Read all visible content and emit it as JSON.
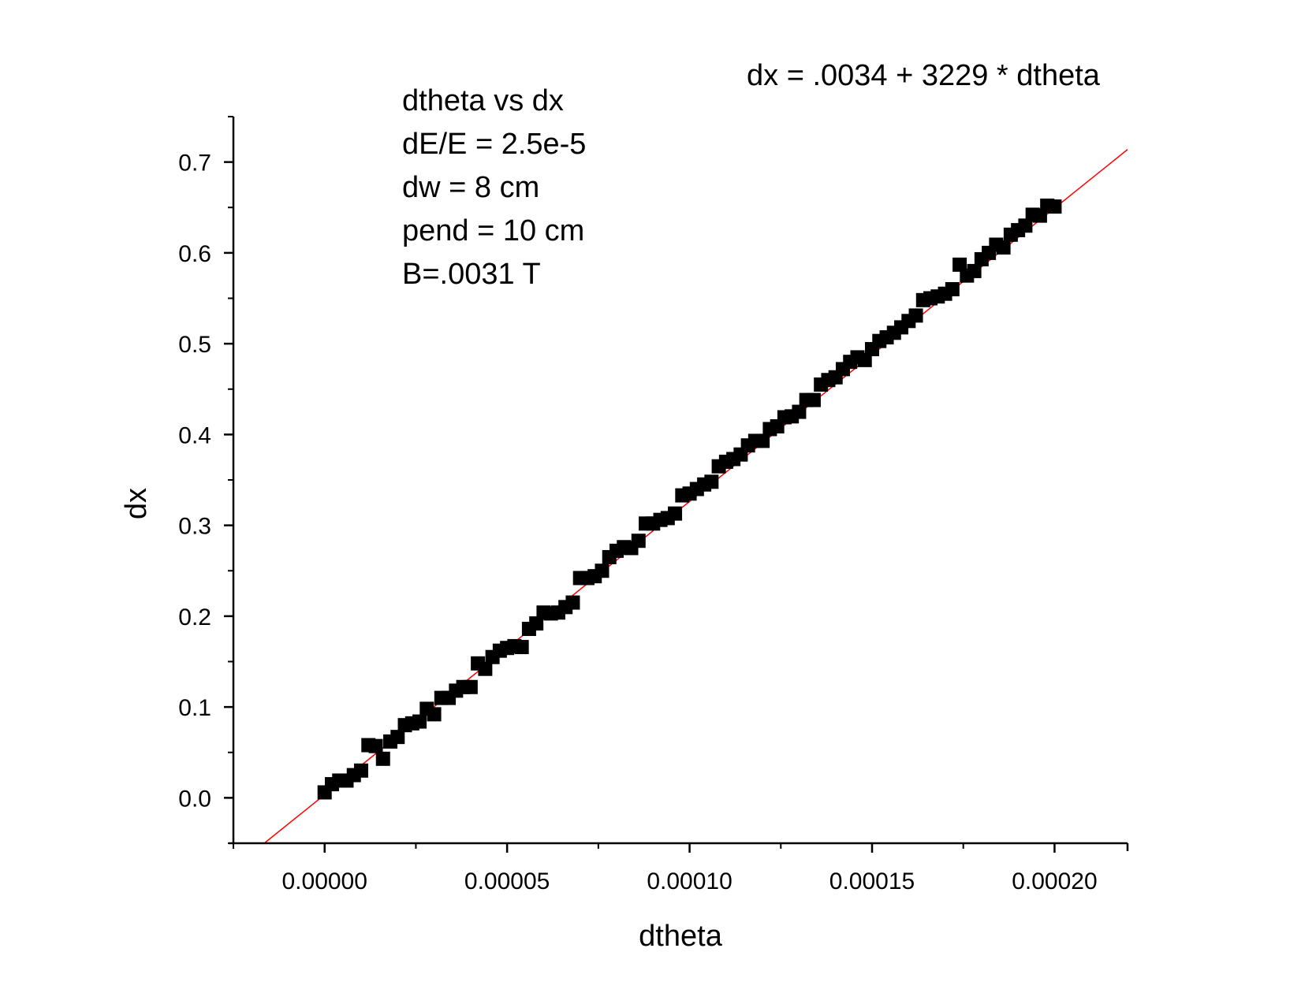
{
  "chart_data": {
    "type": "scatter",
    "title": "",
    "xlabel": "dtheta",
    "ylabel": "dx",
    "xlim": [
      -2.5e-05,
      0.00022
    ],
    "ylim": [
      -0.05,
      0.75
    ],
    "x_ticks": [
      "0.00000",
      "0.00005",
      "0.00010",
      "0.00015",
      "0.00020"
    ],
    "x_tick_values": [
      0,
      5e-05,
      0.0001,
      0.00015,
      0.0002
    ],
    "y_ticks": [
      "0.0",
      "0.1",
      "0.2",
      "0.3",
      "0.4",
      "0.5",
      "0.6",
      "0.7"
    ],
    "y_tick_values": [
      0,
      0.1,
      0.2,
      0.3,
      0.4,
      0.5,
      0.6,
      0.7
    ],
    "grid": false,
    "marker_color": "#000000",
    "fit_color": "#ff0000",
    "annotations": {
      "equation": "dx = .0034 + 3229 * dtheta",
      "params": [
        "dtheta vs dx",
        "dE/E = 2.5e-5",
        "dw = 8 cm",
        "pend = 10 cm",
        "B=.0031 T"
      ]
    },
    "fit": {
      "intercept": 0.0034,
      "slope": 3229,
      "x_range": [
        -1.65e-05,
        0.00022
      ]
    },
    "series": [
      {
        "x": [
          0.0,
          2e-06,
          4e-06,
          6e-06,
          8e-06,
          1e-05,
          1.2e-05,
          1.4e-05,
          1.6e-05,
          1.8e-05,
          2e-05,
          2.2e-05,
          2.4e-05,
          2.6e-05,
          2.8e-05,
          3e-05,
          3.2e-05,
          3.4e-05,
          3.6e-05,
          3.8e-05,
          4e-05,
          4.2e-05,
          4.4e-05,
          4.6e-05,
          4.8e-05,
          5e-05,
          5.2e-05,
          5.4e-05,
          5.6e-05,
          5.8e-05,
          6e-05,
          6.2e-05,
          6.4e-05,
          6.6e-05,
          6.8e-05,
          7e-05,
          7.2e-05,
          7.4e-05,
          7.6e-05,
          7.8e-05,
          8e-05,
          8.2e-05,
          8.4e-05,
          8.6e-05,
          8.8e-05,
          9e-05,
          9.2e-05,
          9.4e-05,
          9.6e-05,
          9.8e-05,
          0.0001,
          0.000102,
          0.000104,
          0.000106,
          0.000108,
          0.00011,
          0.000112,
          0.000114,
          0.000116,
          0.000118,
          0.00012,
          0.000122,
          0.000124,
          0.000126,
          0.000128,
          0.00013,
          0.000132,
          0.000134,
          0.000136,
          0.000138,
          0.00014,
          0.000142,
          0.000144,
          0.000146,
          0.000148,
          0.00015,
          0.000152,
          0.000154,
          0.000156,
          0.000158,
          0.00016,
          0.000162,
          0.000164,
          0.000166,
          0.000168,
          0.00017,
          0.000172,
          0.000174,
          0.000176,
          0.000178,
          0.00018,
          0.000182,
          0.000184,
          0.000186,
          0.000188,
          0.00019,
          0.000192,
          0.000194,
          0.000196,
          0.000198,
          0.0002
        ],
        "y": [
          0.006,
          0.015,
          0.019,
          0.019,
          0.025,
          0.03,
          0.058,
          0.057,
          0.043,
          0.062,
          0.067,
          0.08,
          0.082,
          0.084,
          0.098,
          0.092,
          0.11,
          0.11,
          0.118,
          0.122,
          0.122,
          0.148,
          0.142,
          0.155,
          0.162,
          0.165,
          0.167,
          0.166,
          0.186,
          0.192,
          0.204,
          0.203,
          0.204,
          0.21,
          0.215,
          0.242,
          0.242,
          0.244,
          0.25,
          0.265,
          0.272,
          0.276,
          0.275,
          0.283,
          0.302,
          0.302,
          0.306,
          0.308,
          0.313,
          0.333,
          0.335,
          0.34,
          0.345,
          0.348,
          0.365,
          0.37,
          0.373,
          0.378,
          0.388,
          0.393,
          0.393,
          0.406,
          0.409,
          0.419,
          0.42,
          0.425,
          0.438,
          0.438,
          0.455,
          0.46,
          0.463,
          0.472,
          0.48,
          0.485,
          0.482,
          0.494,
          0.503,
          0.507,
          0.512,
          0.518,
          0.525,
          0.531,
          0.548,
          0.55,
          0.552,
          0.555,
          0.56,
          0.587,
          0.575,
          0.58,
          0.593,
          0.6,
          0.609,
          0.606,
          0.62,
          0.625,
          0.63,
          0.642,
          0.641,
          0.652,
          0.651
        ]
      }
    ]
  }
}
